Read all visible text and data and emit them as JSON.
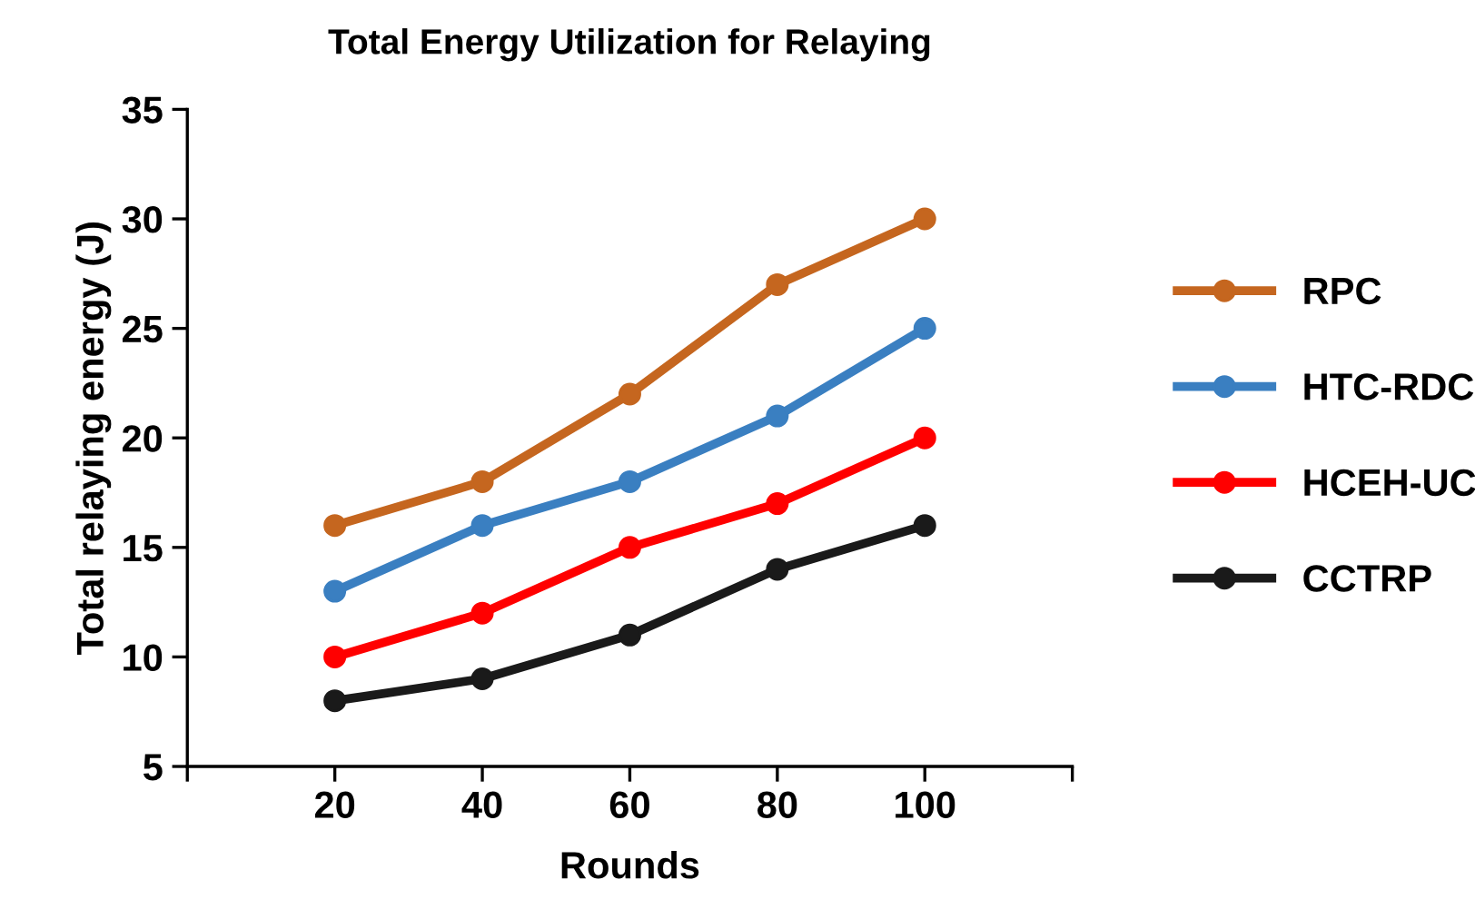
{
  "chart_data": {
    "type": "line",
    "title": "Total Energy Utilization for Relaying",
    "xlabel": "Rounds",
    "ylabel": "Total relaying energy (J)",
    "x": [
      20,
      40,
      60,
      80,
      100
    ],
    "series": [
      {
        "name": "RPC",
        "color": "#c5661f",
        "values": [
          16,
          18,
          22,
          27,
          30
        ]
      },
      {
        "name": "HTC-RDC",
        "color": "#3a7fc1",
        "values": [
          13,
          16,
          18,
          21,
          25
        ]
      },
      {
        "name": "HCEH-UC",
        "color": "#ff0000",
        "values": [
          10,
          12,
          15,
          17,
          20
        ]
      },
      {
        "name": "CCTRP",
        "color": "#1a1a1a",
        "values": [
          8,
          9,
          11,
          14,
          16
        ]
      }
    ],
    "xlim": [
      0,
      120
    ],
    "xticks": [
      {
        "value": 0,
        "label": null
      },
      20,
      40,
      60,
      80,
      100,
      {
        "value": 120,
        "label": null
      }
    ],
    "ylim": [
      5,
      35
    ],
    "yticks": [
      5,
      10,
      15,
      20,
      25,
      30,
      35
    ],
    "grid": false,
    "legend": "right",
    "marker": "circle",
    "line_style": "solid"
  }
}
